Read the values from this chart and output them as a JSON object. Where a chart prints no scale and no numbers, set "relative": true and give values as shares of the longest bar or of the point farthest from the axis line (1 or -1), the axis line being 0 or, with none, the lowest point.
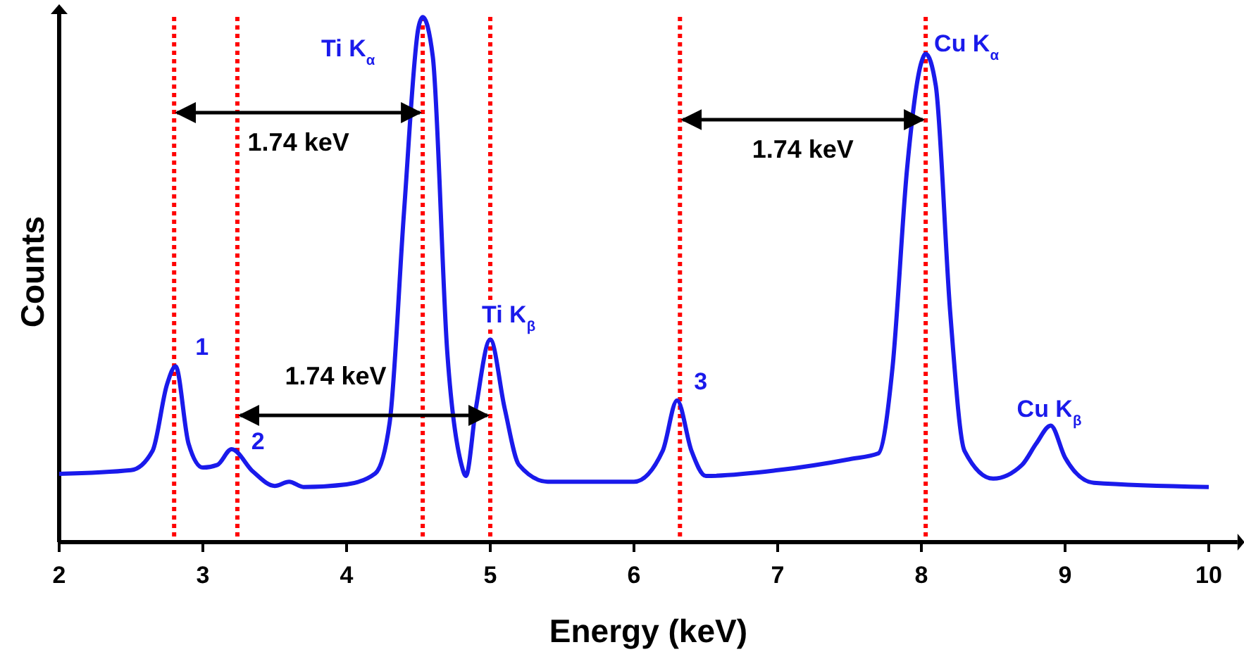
{
  "chart_data": {
    "type": "line",
    "relative": true,
    "xlabel": "Energy (keV)",
    "ylabel": "Counts",
    "xlim": [
      2,
      10.2
    ],
    "xticks": [
      2,
      3,
      4,
      5,
      6,
      7,
      8,
      9,
      10
    ],
    "grid": false,
    "line_style": "solid",
    "series": [
      {
        "color": "#1a1aeb",
        "x": [
          2.0,
          2.5,
          2.65,
          2.75,
          2.81,
          2.9,
          3.0,
          3.1,
          3.2,
          3.35,
          3.5,
          3.6,
          3.7,
          4.0,
          4.2,
          4.3,
          4.4,
          4.5,
          4.53,
          4.6,
          4.7,
          4.8,
          4.83,
          4.9,
          5.0,
          5.1,
          5.2,
          5.4,
          6.0,
          6.2,
          6.3,
          6.4,
          6.5,
          7.0,
          7.5,
          7.7,
          7.8,
          7.9,
          8.0,
          8.03,
          8.1,
          8.2,
          8.3,
          8.5,
          8.7,
          8.8,
          8.9,
          9.0,
          9.2,
          10.0
        ],
        "values": [
          0.13,
          0.137,
          0.174,
          0.3,
          0.335,
          0.188,
          0.142,
          0.147,
          0.177,
          0.134,
          0.107,
          0.115,
          0.105,
          0.11,
          0.131,
          0.228,
          0.63,
          0.98,
          1.0,
          0.925,
          0.365,
          0.147,
          0.126,
          0.255,
          0.386,
          0.255,
          0.147,
          0.115,
          0.115,
          0.174,
          0.27,
          0.174,
          0.126,
          0.137,
          0.158,
          0.169,
          0.335,
          0.71,
          0.914,
          0.93,
          0.87,
          0.44,
          0.174,
          0.121,
          0.147,
          0.188,
          0.222,
          0.161,
          0.113,
          0.105
        ]
      }
    ],
    "ref_lines": [
      {
        "axis": "x",
        "value": 2.8,
        "color": "#ff0000",
        "line_style": "dotted"
      },
      {
        "axis": "x",
        "value": 3.24,
        "color": "#ff0000",
        "line_style": "dotted"
      },
      {
        "axis": "x",
        "value": 4.53,
        "color": "#ff0000",
        "line_style": "dotted"
      },
      {
        "axis": "x",
        "value": 5.0,
        "color": "#ff0000",
        "line_style": "dotted"
      },
      {
        "axis": "x",
        "value": 6.32,
        "color": "#ff0000",
        "line_style": "dotted"
      },
      {
        "axis": "x",
        "value": 8.03,
        "color": "#ff0000",
        "line_style": "dotted"
      }
    ],
    "annotations": [
      "1.74 keV",
      "1.74 keV",
      "1.74 keV",
      {
        "text": "1",
        "x": 2.81,
        "y": 0.335
      },
      {
        "text": "2",
        "x": 3.2,
        "y": 0.177
      },
      {
        "text": "Ti K$_{α}$",
        "x": 4.53,
        "y": 1.0
      },
      {
        "text": "Ti K$_{β}$",
        "x": 5.0,
        "y": 0.386
      },
      {
        "text": "3",
        "x": 6.3,
        "y": 0.27
      },
      {
        "text": "Cu K$_{α}$",
        "x": 8.03,
        "y": 0.93
      },
      {
        "text": "Cu K$_{β}$",
        "x": 8.9,
        "y": 0.222
      }
    ]
  }
}
